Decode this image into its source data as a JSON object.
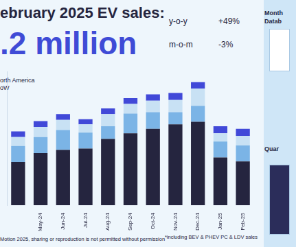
{
  "header": {
    "title": "ebruary 2025 EV sales:",
    "headline": ".2 million",
    "kpis": [
      {
        "label": "y-o-y",
        "value": "+49%"
      },
      {
        "label": "m-o-m",
        "value": "-3%"
      }
    ]
  },
  "chart_data": {
    "type": "bar",
    "stacked": true,
    "tick_labels": "x",
    "grid": false,
    "categories": [
      null,
      "May-24",
      "Jun-24",
      "Jul-24",
      "Aug-24",
      "Sep-24",
      "Oct-24",
      "Nov-24",
      "Dec-24",
      "Jan-25",
      "Feb-25"
    ],
    "ylim": [
      0,
      2.1
    ],
    "series": [
      {
        "name": null,
        "color": "#25253f",
        "values": [
          0.68,
          0.82,
          0.87,
          0.89,
          1.04,
          1.13,
          1.2,
          1.27,
          1.31,
          0.75,
          0.69
        ]
      },
      {
        "name": null,
        "color": "#7bb4e6",
        "values": [
          0.25,
          0.25,
          0.31,
          0.25,
          0.2,
          0.31,
          0.26,
          0.19,
          0.25,
          0.25,
          0.25
        ]
      },
      {
        "name": "orth America",
        "color": "#c8e1f4",
        "values": [
          0.14,
          0.16,
          0.16,
          0.13,
          0.19,
          0.15,
          0.18,
          0.19,
          0.27,
          0.13,
          0.15
        ]
      },
      {
        "name": "oW",
        "color": "#4149d8",
        "values": [
          0.09,
          0.09,
          0.09,
          0.08,
          0.09,
          0.09,
          0.1,
          0.11,
          0.1,
          0.11,
          0.11
        ]
      }
    ]
  },
  "footer": {
    "left": "Motion 2025, sharing or reproduction is not permitted without permission",
    "right": "*including BEV & PHEV PC & LDV sales"
  },
  "sidebar": [
    "Month",
    "Datab",
    "Quar"
  ]
}
